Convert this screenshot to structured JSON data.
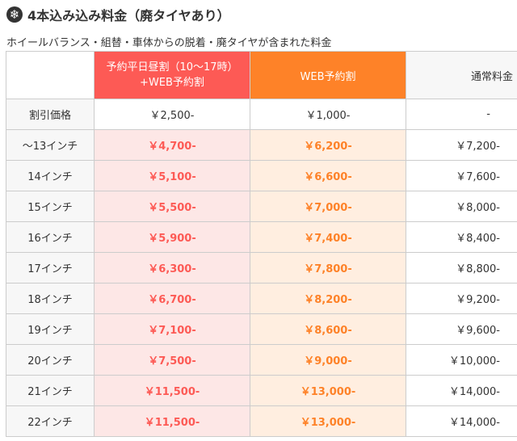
{
  "heading": {
    "icon": "snowflake-icon",
    "title": "4本込み込み料金（廃タイヤあり）"
  },
  "subtitle": "ホイールバランス・組替・車体からの脱着・廃タイヤが含まれた料金",
  "table": {
    "headers": {
      "label": "",
      "yoyaku_line1": "予約平日昼割（10～17時）",
      "yoyaku_line2": "+WEB予約割",
      "web": "WEB予約割",
      "normal": "通常料金"
    },
    "discount": {
      "label": "割引価格",
      "yoyaku": "￥2,500-",
      "web": "￥1,000-",
      "normal": "-"
    },
    "rows": [
      {
        "size": "～13インチ",
        "yoyaku": "￥4,700-",
        "web": "￥6,200-",
        "normal": "￥7,200-"
      },
      {
        "size": "14インチ",
        "yoyaku": "￥5,100-",
        "web": "￥6,600-",
        "normal": "￥7,600-"
      },
      {
        "size": "15インチ",
        "yoyaku": "￥5,500-",
        "web": "￥7,000-",
        "normal": "￥8,000-"
      },
      {
        "size": "16インチ",
        "yoyaku": "￥5,900-",
        "web": "￥7,400-",
        "normal": "￥8,400-"
      },
      {
        "size": "17インチ",
        "yoyaku": "￥6,300-",
        "web": "￥7,800-",
        "normal": "￥8,800-"
      },
      {
        "size": "18インチ",
        "yoyaku": "￥6,700-",
        "web": "￥8,200-",
        "normal": "￥9,200-"
      },
      {
        "size": "19インチ",
        "yoyaku": "￥7,100-",
        "web": "￥8,600-",
        "normal": "￥9,600-"
      },
      {
        "size": "20インチ",
        "yoyaku": "￥7,500-",
        "web": "￥9,000-",
        "normal": "￥10,000-"
      },
      {
        "size": "21インチ",
        "yoyaku": "￥11,500-",
        "web": "￥13,000-",
        "normal": "￥14,000-"
      },
      {
        "size": "22インチ",
        "yoyaku": "￥11,500-",
        "web": "￥13,000-",
        "normal": "￥14,000-"
      }
    ]
  },
  "colors": {
    "yoyaku_header": "#fd5a55",
    "web_header": "#fe8228",
    "yoyaku_cell": "#fde7e6",
    "web_cell": "#ffeee0"
  }
}
